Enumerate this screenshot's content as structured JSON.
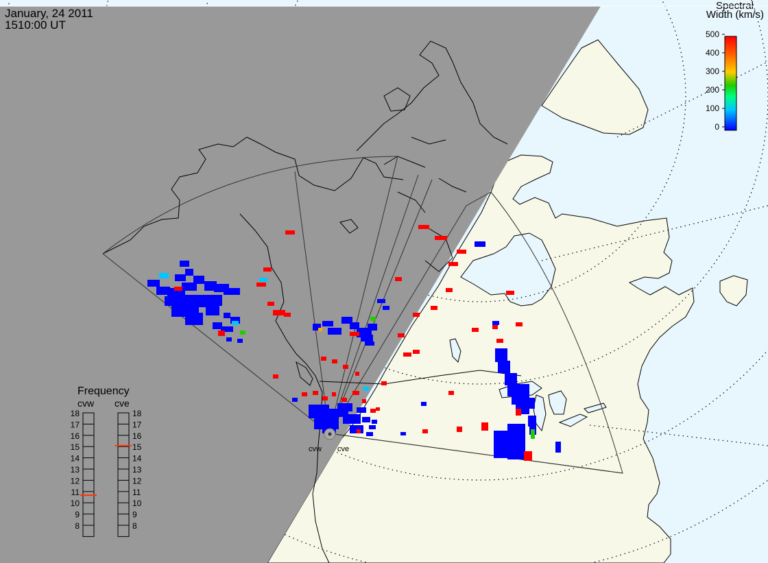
{
  "header": {
    "date": "January, 24 2011",
    "time": "1510:00 UT"
  },
  "colorbar": {
    "title_line1": "Spectral",
    "title_line2": "Width (km/s)",
    "ticks": [
      "500",
      "400",
      "300",
      "200",
      "100",
      "0"
    ],
    "min": 0,
    "max": 500,
    "colors": [
      "#0000ff",
      "#00c8ff",
      "#00ff80",
      "#22cc00",
      "#ffcc00",
      "#ff6600",
      "#ff0000"
    ]
  },
  "radars": {
    "west_label": "cvw",
    "east_label": "cve"
  },
  "frequency_panel": {
    "title": "Frequency",
    "west_label": "cvw",
    "east_label": "cve",
    "scale": [
      "18",
      "17",
      "16",
      "15",
      "14",
      "13",
      "12",
      "11",
      "10",
      "9",
      "8"
    ],
    "west_value_mhz": 10.8,
    "east_value_mhz": 15.2,
    "indicator_color": "#ff3300"
  },
  "colors": {
    "night": "#999999",
    "day_land": "#f8f8e8",
    "ocean": "#e8f6fd",
    "outline": "#000000",
    "grid": "#000000"
  }
}
